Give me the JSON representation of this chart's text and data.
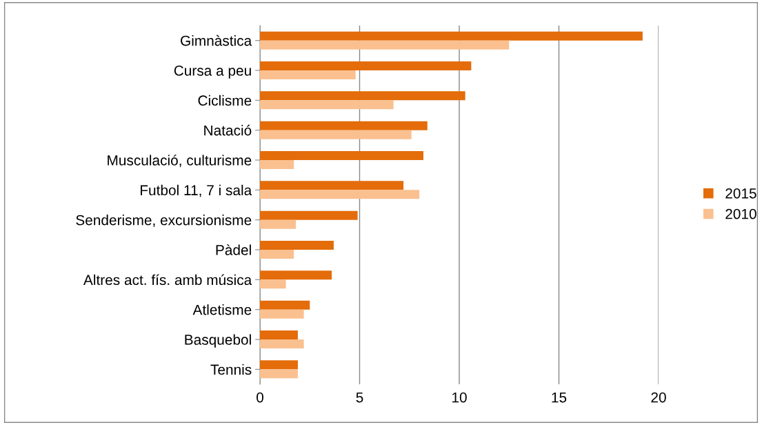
{
  "chart_data": {
    "type": "bar",
    "orientation": "horizontal",
    "categories": [
      "Gimnàstica",
      "Cursa a peu",
      "Ciclisme",
      "Natació",
      "Musculació, culturisme",
      "Futbol 11, 7 i sala",
      "Senderisme, excursionisme",
      "Pàdel",
      "Altres act. fís. amb música",
      "Atletisme",
      "Basquebol",
      "Tennis"
    ],
    "series": [
      {
        "name": "2015",
        "color": "#e46c0a",
        "values": [
          19.2,
          10.6,
          10.3,
          8.4,
          8.2,
          7.2,
          4.9,
          3.7,
          3.6,
          2.5,
          1.9,
          1.9
        ]
      },
      {
        "name": "2010",
        "color": "#fac090",
        "values": [
          12.5,
          4.8,
          6.7,
          7.6,
          1.7,
          8.0,
          1.8,
          1.7,
          1.3,
          2.2,
          2.2,
          1.9
        ]
      }
    ],
    "xlim": [
      0,
      20
    ],
    "xticks": [
      0,
      5,
      10,
      15,
      20
    ],
    "grid": "x",
    "legend": "right"
  }
}
